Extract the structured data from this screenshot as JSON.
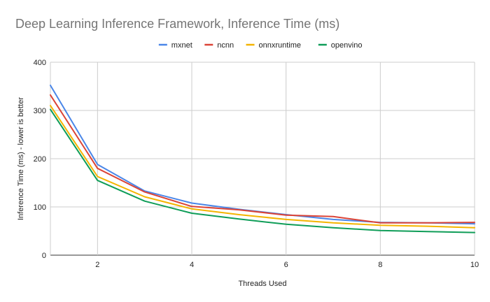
{
  "chart_data": {
    "type": "line",
    "title": "Deep Learning Inference Framework, Inference Time (ms)",
    "xlabel": "Threads Used",
    "ylabel": "Inference Time (ms) - lower is better",
    "xlim": [
      1,
      10
    ],
    "ylim": [
      0,
      400
    ],
    "x_ticks": [
      2,
      4,
      6,
      8,
      10
    ],
    "y_ticks": [
      0,
      100,
      200,
      300,
      400
    ],
    "grid": true,
    "legend_position": "top",
    "x": [
      1,
      2,
      3,
      4,
      5,
      6,
      7,
      8,
      9,
      10
    ],
    "series": [
      {
        "name": "mxnet",
        "color": "#4a86e8",
        "values": [
          352,
          188,
          133,
          108,
          95,
          84,
          74,
          68,
          67,
          65
        ]
      },
      {
        "name": "ncnn",
        "color": "#db4437",
        "values": [
          332,
          180,
          131,
          101,
          94,
          83,
          80,
          67,
          67,
          68
        ]
      },
      {
        "name": "onnxruntime",
        "color": "#f4b400",
        "values": [
          310,
          163,
          121,
          96,
          84,
          74,
          67,
          62,
          60,
          57
        ]
      },
      {
        "name": "openvino",
        "color": "#0f9d58",
        "values": [
          302,
          155,
          112,
          87,
          75,
          64,
          57,
          51,
          49,
          47
        ]
      }
    ]
  }
}
